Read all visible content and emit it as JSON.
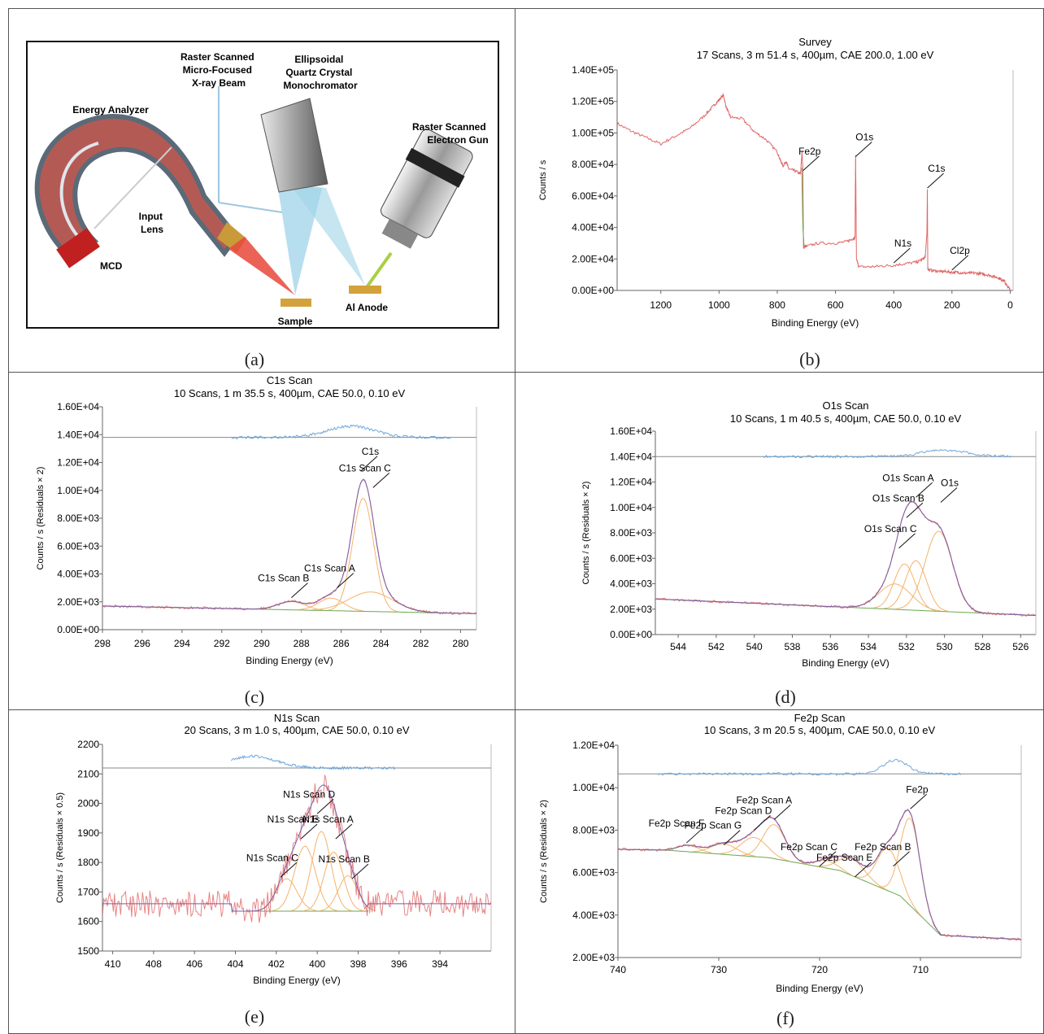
{
  "figure": {
    "panels": [
      {
        "label": "(a)"
      },
      {
        "label": "(b)"
      },
      {
        "label": "(c)"
      },
      {
        "label": "(d)"
      },
      {
        "label": "(e)"
      },
      {
        "label": "(f)"
      }
    ]
  },
  "schematic": {
    "labels": {
      "raster_beam": [
        "Raster Scanned",
        "Micro-Focused",
        "X-ray Beam"
      ],
      "monochromator": [
        "Ellipsoidal",
        "Quartz Crystal",
        "Monochromator"
      ],
      "energy_analyzer": "Energy Analyzer",
      "electron_gun": [
        "Raster Scanned",
        "Electron Gun"
      ],
      "input_lens": [
        "Input",
        "Lens"
      ],
      "mcd": "MCD",
      "sample": "Sample",
      "al_anode": "Al Anode"
    },
    "colors": {
      "analyzer": "#c0504d",
      "beam": "#9fd3e8",
      "electron": "#a8d040",
      "xray": "#e8483a"
    }
  },
  "chart_data": [
    {
      "type": "line",
      "title": "Survey",
      "subtitle": "17 Scans,  3 m 51.4 s,  400µm,  CAE 200.0,  1.00 eV",
      "xlabel": "Binding Energy (eV)",
      "ylabel": "Counts / s",
      "xlim": [
        1350,
        -10
      ],
      "ylim": [
        0,
        140000
      ],
      "xticks": [
        1200,
        1000,
        800,
        600,
        400,
        200,
        0
      ],
      "yticks": [
        0,
        20000,
        40000,
        60000,
        80000,
        100000,
        120000,
        140000
      ],
      "ytick_labels": [
        "0.00E+00",
        "2.00E+04",
        "4.00E+04",
        "6.00E+04",
        "8.00E+04",
        "1.00E+05",
        "1.20E+05",
        "1.40E+05"
      ],
      "colors": {
        "spectrum": "#e06666",
        "background": "#6aa84f"
      },
      "series": [
        {
          "x": [
            1350,
            1300,
            1250,
            1200,
            1150,
            1100,
            1050,
            1020,
            1000,
            985,
            975,
            960,
            920,
            880,
            840,
            800,
            790,
            780,
            770,
            760,
            740,
            720,
            715,
            712,
            710,
            706,
            700,
            660,
            600,
            560,
            540,
            533,
            531,
            528,
            520,
            480,
            440,
            400,
            360,
            320,
            300,
            292,
            286,
            284.5,
            283,
            280,
            260,
            240,
            220,
            200,
            180,
            160,
            140,
            120,
            100,
            80,
            60,
            40,
            30,
            20,
            10,
            0
          ],
          "y": [
            106000,
            101000,
            97000,
            93000,
            98000,
            103000,
            111000,
            117000,
            121000,
            124000,
            116000,
            110000,
            109000,
            101000,
            96000,
            88000,
            83000,
            79000,
            82000,
            77000,
            76000,
            74000,
            88000,
            77000,
            27000,
            28000,
            28000,
            30000,
            30000,
            31000,
            33000,
            33000,
            86000,
            20000,
            15000,
            15000,
            15500,
            16000,
            17000,
            18000,
            20000,
            21000,
            36000,
            65000,
            14000,
            13000,
            12500,
            12000,
            12000,
            11500,
            11500,
            11000,
            11000,
            11000,
            10500,
            10000,
            9000,
            8000,
            7000,
            6000,
            2500,
            1000
          ]
        }
      ],
      "annotations": [
        {
          "text": "Fe2p",
          "x": 712,
          "y": 76000
        },
        {
          "text": "O1s",
          "x": 531,
          "y": 85000
        },
        {
          "text": "C1s",
          "x": 284.5,
          "y": 65000
        },
        {
          "text": "N1s",
          "x": 400,
          "y": 17500
        },
        {
          "text": "Cl2p",
          "x": 200,
          "y": 13000
        }
      ]
    },
    {
      "type": "line",
      "title": "C1s Scan",
      "subtitle": "10 Scans,  1 m 35.5 s,  400µm,  CAE 50.0,  0.10 eV",
      "xlabel": "Binding Energy (eV)",
      "ylabel": "Counts / s  (Residuals × 2)",
      "xlim": [
        298,
        279.2
      ],
      "ylim": [
        0,
        16000
      ],
      "xticks": [
        298,
        296,
        294,
        292,
        290,
        288,
        286,
        284,
        282,
        280
      ],
      "yticks": [
        0,
        2000,
        4000,
        6000,
        8000,
        10000,
        12000,
        14000,
        16000
      ],
      "ytick_labels": [
        "0.00E+00",
        "2.00E+03",
        "4.00E+03",
        "6.00E+03",
        "8.00E+03",
        "1.00E+04",
        "1.20E+04",
        "1.40E+04",
        "1.60E+04"
      ],
      "colors": {
        "envelope": "#7b5ea7",
        "raw": "#e06666",
        "component": "#f6b26b",
        "background": "#6aa84f",
        "residual": "#6fa8dc"
      },
      "background": {
        "x": [
          298,
          279.2
        ],
        "y": [
          1700,
          1150
        ]
      },
      "residual_band": {
        "baseline": 13800,
        "x_start": 291.5,
        "x_end": 280.5,
        "peak_x": 285.5,
        "peak_y": 14600
      },
      "peaks": [
        {
          "name": "C1s Scan B",
          "center": 288.5,
          "height": 600,
          "fwhm": 1.6
        },
        {
          "name": "C1s Scan A",
          "center": 286.5,
          "height": 900,
          "fwhm": 1.5
        },
        {
          "name": "C1s Scan C",
          "center": 284.5,
          "height": 1400,
          "fwhm": 2.6
        },
        {
          "name": "C1s",
          "center": 284.9,
          "height": 8100,
          "fwhm": 1.25
        }
      ],
      "annotations": [
        {
          "text": "C1s",
          "x": 285.0,
          "y": 11400
        },
        {
          "text": "C1s Scan C",
          "x": 284.4,
          "y": 10200
        },
        {
          "text": "C1s Scan A",
          "x": 286.2,
          "y": 3000
        },
        {
          "text": "C1s Scan B",
          "x": 288.5,
          "y": 2300
        }
      ]
    },
    {
      "type": "line",
      "title": "O1s Scan",
      "subtitle": "10 Scans,  1 m 40.5 s,  400µm,  CAE 50.0,  0.10 eV",
      "xlabel": "Binding Energy (eV)",
      "ylabel": "Counts / s  (Residuals × 2)",
      "xlim": [
        545.2,
        525.2
      ],
      "ylim": [
        0,
        16000
      ],
      "xticks": [
        544,
        542,
        540,
        538,
        536,
        534,
        532,
        530,
        528,
        526
      ],
      "yticks": [
        0,
        2000,
        4000,
        6000,
        8000,
        10000,
        12000,
        14000,
        16000
      ],
      "ytick_labels": [
        "0.00E+00",
        "2.00E+03",
        "4.00E+03",
        "6.00E+03",
        "8.00E+03",
        "1.00E+04",
        "1.20E+04",
        "1.40E+04",
        "1.60E+04"
      ],
      "colors": {
        "envelope": "#7b5ea7",
        "raw": "#e06666",
        "component": "#f6b26b",
        "background": "#6aa84f",
        "residual": "#6fa8dc"
      },
      "background": {
        "x": [
          545.2,
          525.2
        ],
        "y": [
          2800,
          1500
        ]
      },
      "residual_band": {
        "baseline": 14000,
        "x_start": 539.5,
        "x_end": 526.5,
        "peak_x": 530,
        "peak_y": 14500
      },
      "peaks": [
        {
          "name": "O1s Scan C",
          "center": 532.6,
          "height": 2000,
          "fwhm": 2.0
        },
        {
          "name": "O1s Scan B",
          "center": 532.1,
          "height": 3600,
          "fwhm": 1.3
        },
        {
          "name": "O1s Scan A",
          "center": 531.5,
          "height": 3900,
          "fwhm": 1.3
        },
        {
          "name": "O1s",
          "center": 530.3,
          "height": 6300,
          "fwhm": 1.7
        }
      ],
      "annotations": [
        {
          "text": "O1s Scan A",
          "x": 531.5,
          "y": 10800
        },
        {
          "text": "O1s",
          "x": 530.2,
          "y": 10400
        },
        {
          "text": "O1s Scan B",
          "x": 532.0,
          "y": 9200
        },
        {
          "text": "O1s Scan C",
          "x": 532.4,
          "y": 6800
        }
      ]
    },
    {
      "type": "line",
      "title": "N1s Scan",
      "subtitle": "20 Scans,  3 m 1.0 s,  400µm,  CAE 50.0,  0.10 eV",
      "xlabel": "Binding Energy (eV)",
      "ylabel": "Counts / s  (Residuals × 0.5)",
      "xlim": [
        410.5,
        391.5
      ],
      "ylim": [
        1500,
        2200
      ],
      "xticks": [
        410,
        408,
        406,
        404,
        402,
        400,
        398,
        396,
        394
      ],
      "yticks": [
        1500,
        1600,
        1700,
        1800,
        1900,
        2000,
        2100,
        2200
      ],
      "ytick_labels": [
        "1500",
        "1600",
        "1700",
        "1800",
        "1900",
        "2000",
        "2100",
        "2200"
      ],
      "colors": {
        "envelope": "#7b5ea7",
        "raw": "#e06666",
        "component": "#f6b26b",
        "background": "#6aa84f",
        "residual": "#6fa8dc"
      },
      "background": {
        "x": [
          404.2,
          397.5
        ],
        "y": [
          1635,
          1635
        ]
      },
      "noise_baseline": 1660,
      "residual_band": {
        "baseline": 2120,
        "x_start": 404.2,
        "x_end": 396.2,
        "peak_x": 403.2,
        "peak_y": 2160
      },
      "peaks": [
        {
          "name": "N1s Scan C",
          "center": 401.5,
          "height": 110,
          "fwhm": 1.2
        },
        {
          "name": "N1s Scan E",
          "center": 400.6,
          "height": 220,
          "fwhm": 1.2
        },
        {
          "name": "N1s Scan D",
          "center": 399.8,
          "height": 270,
          "fwhm": 1.1
        },
        {
          "name": "N1s Scan A",
          "center": 399.2,
          "height": 200,
          "fwhm": 1.1
        },
        {
          "name": "N1s Scan B",
          "center": 398.5,
          "height": 120,
          "fwhm": 1.1
        }
      ],
      "annotations": [
        {
          "text": "N1s Scan D",
          "x": 400,
          "y": 1965
        },
        {
          "text": "N1s Scan E",
          "x": 400.8,
          "y": 1880
        },
        {
          "text": "N1s Scan A",
          "x": 399.1,
          "y": 1880
        },
        {
          "text": "N1s Scan C",
          "x": 401.8,
          "y": 1750
        },
        {
          "text": "N1s Scan B",
          "x": 398.3,
          "y": 1745
        }
      ]
    },
    {
      "type": "line",
      "title": "Fe2p Scan",
      "subtitle": "10 Scans,  3 m 20.5 s,  400µm,  CAE 50.0,  0.10 eV",
      "xlabel": "Binding Energy (eV)",
      "ylabel": "Counts / s  (Residuals × 2)",
      "xlim": [
        740,
        700
      ],
      "ylim": [
        2000,
        12000
      ],
      "xticks": [
        740,
        730,
        720,
        710
      ],
      "yticks": [
        2000,
        4000,
        6000,
        8000,
        10000,
        12000
      ],
      "ytick_labels": [
        "2.00E+03",
        "4.00E+03",
        "6.00E+03",
        "8.00E+03",
        "1.00E+04",
        "1.20E+04"
      ],
      "colors": {
        "envelope": "#7b5ea7",
        "raw": "#e06666",
        "component": "#f6b26b",
        "background": "#6aa84f",
        "residual": "#6fa8dc"
      },
      "background": {
        "x": [
          740,
          735,
          725,
          718,
          712,
          708,
          700
        ],
        "y": [
          7100,
          7050,
          6700,
          6100,
          4900,
          3050,
          2850
        ]
      },
      "residual_band": {
        "baseline": 10650,
        "x_start": 736,
        "x_end": 706,
        "peak_x": 712.5,
        "peak_y": 11300
      },
      "peaks": [
        {
          "name": "Fe2p Scan F",
          "center": 733.0,
          "height": 300,
          "fwhm": 2.5
        },
        {
          "name": "Fe2p Scan G",
          "center": 729.5,
          "height": 500,
          "fwhm": 3.0
        },
        {
          "name": "Fe2p Scan D",
          "center": 726.5,
          "height": 900,
          "fwhm": 3.0
        },
        {
          "name": "Fe2p Scan A",
          "center": 724.5,
          "height": 1600,
          "fwhm": 2.6
        },
        {
          "name": "Fe2p Scan C",
          "center": 719.3,
          "height": 350,
          "fwhm": 2.5
        },
        {
          "name": "Fe2p Scan E",
          "center": 716.8,
          "height": 800,
          "fwhm": 3.0
        },
        {
          "name": "Fe2p Scan B",
          "center": 713.2,
          "height": 2000,
          "fwhm": 2.6
        },
        {
          "name": "Fe2p",
          "center": 711.0,
          "height": 4100,
          "fwhm": 2.3
        }
      ],
      "annotations": [
        {
          "text": "Fe2p Scan F",
          "x": 733.2,
          "y": 7400
        },
        {
          "text": "Fe2p Scan G",
          "x": 729.5,
          "y": 7300
        },
        {
          "text": "Fe2p Scan D",
          "x": 726.5,
          "y": 8000
        },
        {
          "text": "Fe2p Scan A",
          "x": 724.5,
          "y": 8500
        },
        {
          "text": "Fe2p Scan C",
          "x": 720.0,
          "y": 6300
        },
        {
          "text": "Fe2p Scan E",
          "x": 716.5,
          "y": 5800
        },
        {
          "text": "Fe2p Scan B",
          "x": 712.7,
          "y": 6300
        },
        {
          "text": "Fe2p",
          "x": 711.0,
          "y": 9000
        }
      ]
    }
  ]
}
